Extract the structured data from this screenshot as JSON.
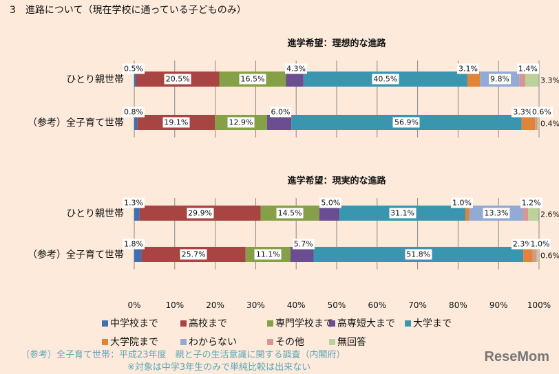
{
  "heading": "3　進路について（現在学校に通っている子どものみ）",
  "chart_data": [
    {
      "type": "bar",
      "orientation": "horizontal",
      "stacked": true,
      "title": "進学希望：理想的な進路",
      "categories": [
        "ひとり親世帯",
        "（参考）全子育て世帯"
      ],
      "xlim": [
        0,
        100
      ],
      "grid": true,
      "series": [
        {
          "name": "中学校まで",
          "color": "#3f6fae",
          "values": [
            0.5,
            0.8
          ]
        },
        {
          "name": "高校まで",
          "color": "#a84442",
          "values": [
            20.5,
            19.1
          ]
        },
        {
          "name": "専門学校まで",
          "color": "#85a046",
          "values": [
            16.5,
            12.9
          ]
        },
        {
          "name": "高専短大まで",
          "color": "#6b4e92",
          "values": [
            4.3,
            6.0
          ]
        },
        {
          "name": "大学まで",
          "color": "#3a96ae",
          "values": [
            40.5,
            56.9
          ]
        },
        {
          "name": "大学院まで",
          "color": "#e0843a",
          "values": [
            3.1,
            3.3
          ]
        },
        {
          "name": "わからない",
          "color": "#92aad4",
          "values": [
            9.8,
            null
          ]
        },
        {
          "name": "その他",
          "color": "#d99594",
          "values": [
            1.4,
            0.6
          ]
        },
        {
          "name": "無回答",
          "color": "#bcd29a",
          "values": [
            3.3,
            0.4
          ]
        }
      ]
    },
    {
      "type": "bar",
      "orientation": "horizontal",
      "stacked": true,
      "title": "進学希望：現実的な進路",
      "categories": [
        "ひとり親世帯",
        "（参考）全子育て世帯"
      ],
      "xlim": [
        0,
        100
      ],
      "grid": true,
      "series": [
        {
          "name": "中学校まで",
          "color": "#3f6fae",
          "values": [
            1.3,
            1.8
          ]
        },
        {
          "name": "高校まで",
          "color": "#a84442",
          "values": [
            29.9,
            25.7
          ]
        },
        {
          "name": "専門学校まで",
          "color": "#85a046",
          "values": [
            14.5,
            11.1
          ]
        },
        {
          "name": "高専短大まで",
          "color": "#6b4e92",
          "values": [
            5.0,
            5.7
          ]
        },
        {
          "name": "大学まで",
          "color": "#3a96ae",
          "values": [
            31.1,
            51.8
          ]
        },
        {
          "name": "大学院まで",
          "color": "#e0843a",
          "values": [
            1.0,
            2.3
          ]
        },
        {
          "name": "わからない",
          "color": "#92aad4",
          "values": [
            13.3,
            null
          ]
        },
        {
          "name": "その他",
          "color": "#d99594",
          "values": [
            1.2,
            1.0
          ]
        },
        {
          "name": "無回答",
          "color": "#bcd29a",
          "values": [
            2.6,
            0.6
          ]
        }
      ]
    }
  ],
  "x_ticks": [
    "0%",
    "10%",
    "20%",
    "30%",
    "40%",
    "50%",
    "60%",
    "70%",
    "80%",
    "90%",
    "100%"
  ],
  "legend_placement": "bottom",
  "footnote": {
    "line1": "（参考）全子育て世帯：平成23年度　親と子の生活意識に関する調査（内閣府）",
    "line2": "※対象は中学3年生のみで単純比較は出来ない"
  },
  "logo": "ReseMom"
}
